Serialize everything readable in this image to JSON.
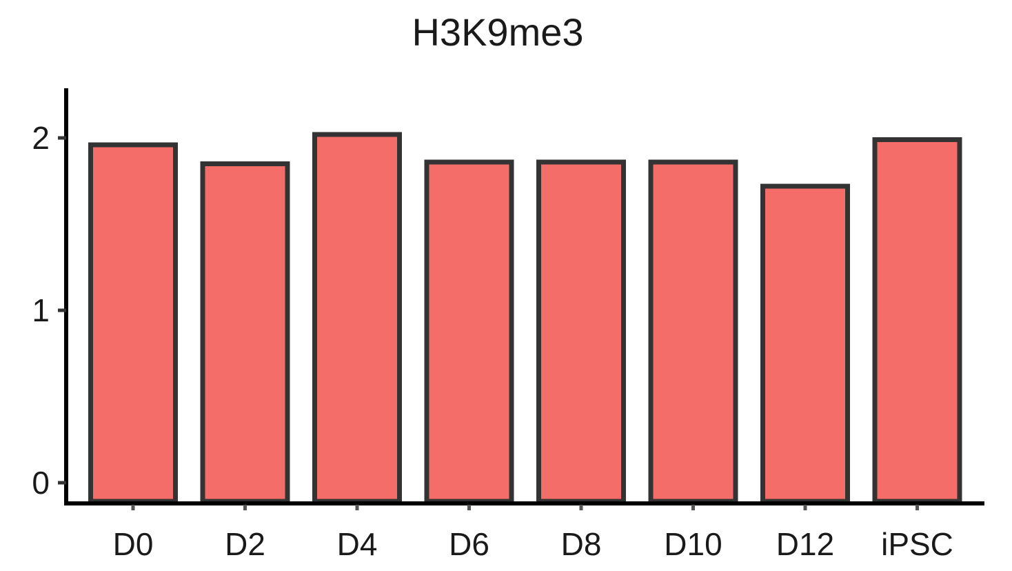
{
  "chart_data": {
    "type": "bar",
    "title": "H3K9me3",
    "xlabel": "",
    "ylabel": "",
    "categories": [
      "D0",
      "D2",
      "D4",
      "D6",
      "D8",
      "D10",
      "D12",
      "iPSC"
    ],
    "values": [
      1.96,
      1.85,
      2.02,
      1.86,
      1.86,
      1.86,
      1.72,
      1.99
    ],
    "yticks": [
      "0",
      "1",
      "2"
    ],
    "ylim": [
      -0.1,
      2.3
    ],
    "grid": false,
    "legend": "none",
    "colors": {
      "bar_fill": "#f46d68",
      "bar_stroke": "#333333",
      "axis": "#000000"
    }
  }
}
